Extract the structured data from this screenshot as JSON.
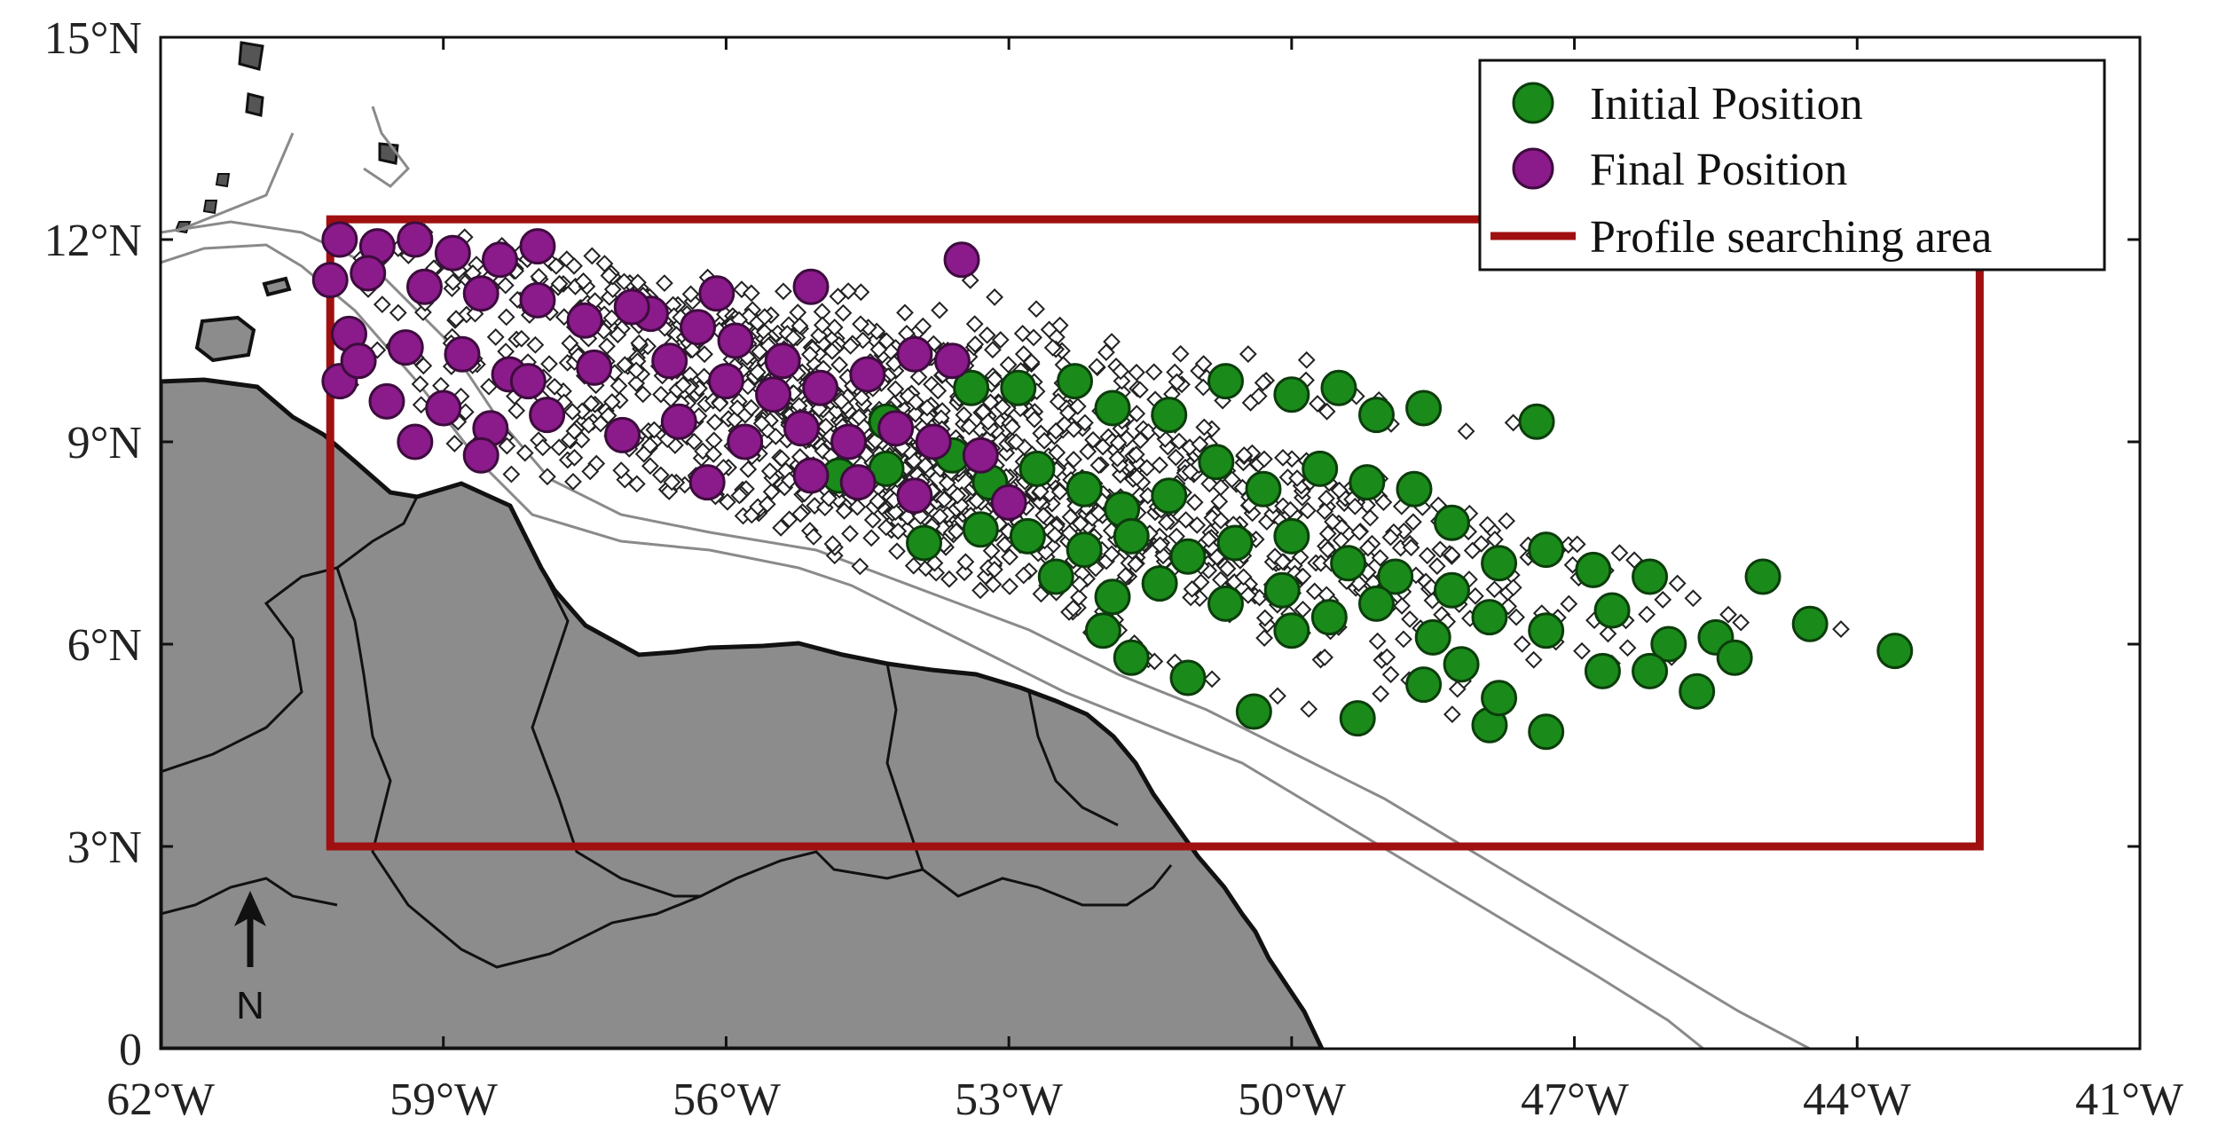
{
  "map": {
    "x_ticks": [
      "62°W",
      "59°W",
      "56°W",
      "53°W",
      "50°W",
      "47°W",
      "44°W",
      "41°W"
    ],
    "y_ticks": [
      "0",
      "3°N",
      "6°N",
      "9°N",
      "12°N",
      "15°N"
    ],
    "lon_range": [
      -62,
      -41
    ],
    "lat_range": [
      0,
      15
    ],
    "north_arrow_label": "N",
    "colors": {
      "land": "#8c8c8c",
      "initial": "#1a8a1a",
      "final": "#8b1a8b",
      "box": "#a01010",
      "trajectory": "#ffffff"
    },
    "search_area": {
      "lon": [
        -60.2,
        -42.7
      ],
      "lat": [
        3,
        12.3
      ]
    }
  },
  "legend": {
    "initial": "Initial Position",
    "final": "Final Position",
    "area": "Profile searching area"
  },
  "markers": {
    "initial": [
      [
        -53.4,
        9.8
      ],
      [
        -52.9,
        9.8
      ],
      [
        -52.3,
        9.9
      ],
      [
        -51.9,
        9.5
      ],
      [
        -51.3,
        9.4
      ],
      [
        -50.7,
        9.9
      ],
      [
        -50.0,
        9.7
      ],
      [
        -49.5,
        9.8
      ],
      [
        -49.1,
        9.4
      ],
      [
        -48.6,
        9.5
      ],
      [
        -47.4,
        9.3
      ],
      [
        -54.3,
        9.3
      ],
      [
        -54.8,
        8.5
      ],
      [
        -54.3,
        8.6
      ],
      [
        -53.6,
        8.8
      ],
      [
        -53.2,
        8.4
      ],
      [
        -52.7,
        8.6
      ],
      [
        -52.2,
        8.3
      ],
      [
        -51.8,
        8.0
      ],
      [
        -51.3,
        8.2
      ],
      [
        -50.8,
        8.7
      ],
      [
        -50.3,
        8.3
      ],
      [
        -49.7,
        8.6
      ],
      [
        -49.2,
        8.4
      ],
      [
        -48.7,
        8.3
      ],
      [
        -48.3,
        7.8
      ],
      [
        -53.9,
        7.5
      ],
      [
        -53.3,
        7.7
      ],
      [
        -52.8,
        7.6
      ],
      [
        -52.2,
        7.4
      ],
      [
        -51.7,
        7.6
      ],
      [
        -51.1,
        7.3
      ],
      [
        -50.6,
        7.5
      ],
      [
        -50.0,
        7.6
      ],
      [
        -49.4,
        7.2
      ],
      [
        -48.9,
        7.0
      ],
      [
        -48.3,
        6.8
      ],
      [
        -47.8,
        7.2
      ],
      [
        -47.3,
        7.4
      ],
      [
        -46.8,
        7.1
      ],
      [
        -46.2,
        7.0
      ],
      [
        -52.5,
        7.0
      ],
      [
        -51.9,
        6.7
      ],
      [
        -51.4,
        6.9
      ],
      [
        -50.7,
        6.6
      ],
      [
        -50.1,
        6.8
      ],
      [
        -49.6,
        6.4
      ],
      [
        -49.1,
        6.6
      ],
      [
        -48.5,
        6.1
      ],
      [
        -47.9,
        6.4
      ],
      [
        -47.3,
        6.2
      ],
      [
        -46.6,
        6.5
      ],
      [
        -46.0,
        6.0
      ],
      [
        -45.5,
        6.1
      ],
      [
        -45.0,
        7.0
      ],
      [
        -44.5,
        6.3
      ],
      [
        -43.6,
        5.9
      ],
      [
        -51.7,
        5.8
      ],
      [
        -51.1,
        5.5
      ],
      [
        -50.4,
        5.0
      ],
      [
        -49.3,
        4.9
      ],
      [
        -48.6,
        5.4
      ],
      [
        -47.9,
        4.8
      ],
      [
        -47.3,
        4.7
      ],
      [
        -46.7,
        5.6
      ],
      [
        -46.2,
        5.6
      ],
      [
        -45.7,
        5.3
      ],
      [
        -45.3,
        5.8
      ],
      [
        -47.8,
        5.2
      ],
      [
        -50.0,
        6.2
      ],
      [
        -48.2,
        5.7
      ],
      [
        -52.0,
        6.2
      ]
    ],
    "final": [
      [
        -60.1,
        12.0
      ],
      [
        -59.7,
        11.9
      ],
      [
        -59.3,
        12.0
      ],
      [
        -58.9,
        11.8
      ],
      [
        -58.4,
        11.7
      ],
      [
        -58.0,
        11.9
      ],
      [
        -60.2,
        11.4
      ],
      [
        -59.8,
        11.5
      ],
      [
        -59.2,
        11.3
      ],
      [
        -58.6,
        11.2
      ],
      [
        -58.0,
        11.1
      ],
      [
        -57.5,
        10.8
      ],
      [
        -56.8,
        10.9
      ],
      [
        -56.3,
        10.7
      ],
      [
        -55.9,
        10.5
      ],
      [
        -55.4,
        10.2
      ],
      [
        -60.0,
        10.6
      ],
      [
        -59.4,
        10.4
      ],
      [
        -58.8,
        10.3
      ],
      [
        -58.3,
        10.0
      ],
      [
        -57.4,
        10.1
      ],
      [
        -56.6,
        10.2
      ],
      [
        -56.0,
        9.9
      ],
      [
        -55.5,
        9.7
      ],
      [
        -55.0,
        9.8
      ],
      [
        -54.5,
        10.0
      ],
      [
        -54.0,
        10.3
      ],
      [
        -53.6,
        10.2
      ],
      [
        -60.1,
        9.9
      ],
      [
        -59.6,
        9.6
      ],
      [
        -59.0,
        9.5
      ],
      [
        -58.5,
        9.2
      ],
      [
        -57.9,
        9.4
      ],
      [
        -57.1,
        9.1
      ],
      [
        -56.5,
        9.3
      ],
      [
        -55.8,
        9.0
      ],
      [
        -55.2,
        9.2
      ],
      [
        -54.7,
        9.0
      ],
      [
        -54.2,
        9.2
      ],
      [
        -53.8,
        9.0
      ],
      [
        -53.3,
        8.8
      ],
      [
        -59.3,
        9.0
      ],
      [
        -58.6,
        8.8
      ],
      [
        -56.2,
        8.4
      ],
      [
        -55.1,
        8.5
      ],
      [
        -54.6,
        8.4
      ],
      [
        -54.0,
        8.2
      ],
      [
        -53.0,
        8.1
      ],
      [
        -53.5,
        11.7
      ],
      [
        -55.1,
        11.3
      ],
      [
        -56.1,
        11.2
      ],
      [
        -57.0,
        11.0
      ],
      [
        -59.9,
        10.2
      ],
      [
        -58.1,
        9.9
      ]
    ]
  }
}
